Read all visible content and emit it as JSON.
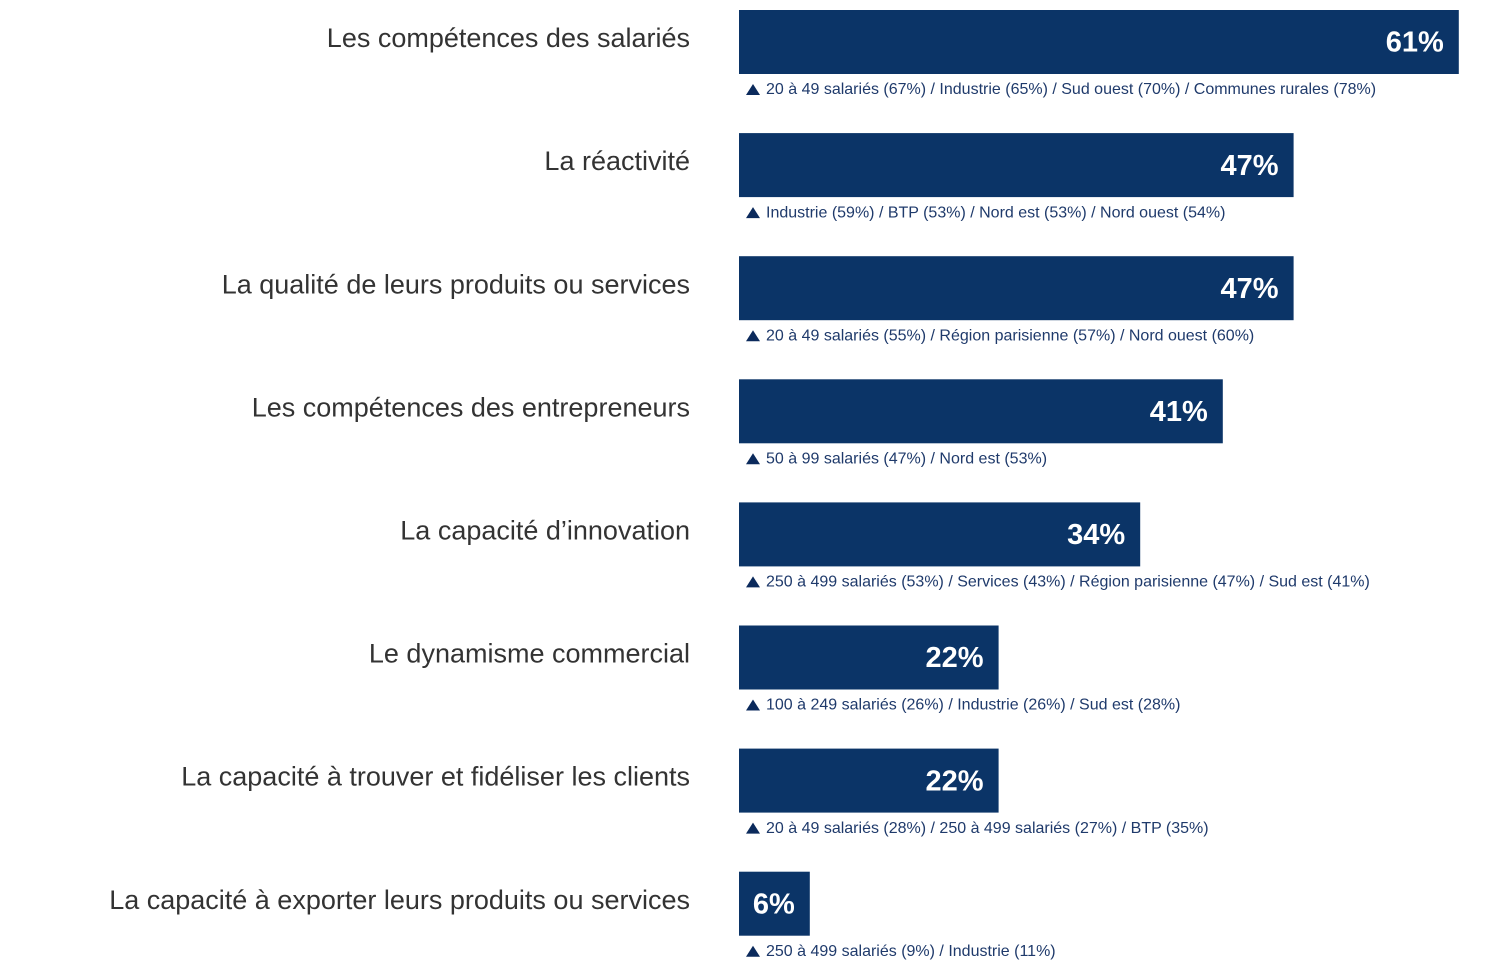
{
  "chart_data": {
    "type": "bar",
    "orientation": "horizontal",
    "color": "#0b3467",
    "categories": [
      "Les compétences des salariés",
      "La réactivité",
      "La qualité de leurs produits ou services",
      "Les compétences des entrepreneurs",
      "La capacité d’innovation",
      "Le dynamisme commercial",
      "La capacité à trouver et fidéliser les clients",
      "La capacité à exporter leurs produits ou services"
    ],
    "values": [
      61,
      47,
      47,
      41,
      34,
      22,
      22,
      6
    ],
    "value_labels": [
      "61%",
      "47%",
      "47%",
      "41%",
      "34%",
      "22%",
      "22%",
      "6%"
    ],
    "annotations": [
      "20 à 49 salariés (67%) / Industrie (65%) / Sud ouest (70%) / Communes rurales (78%)",
      "Industrie (59%) / BTP (53%) / Nord est (53%) / Nord ouest (54%)",
      "20 à 49 salariés (55%) / Région parisienne (57%) / Nord ouest (60%)",
      "50 à 99 salariés (47%) / Nord est (53%)",
      "250 à 499 salariés (53%) / Services (43%) / Région parisienne (47%) / Sud est (41%)",
      "100 à 249 salariés (26%) / Industrie (26%) / Sud est (28%)",
      "20 à 49 salariés (28%) / 250 à 499 salariés (27%) / BTP (35%)",
      "250 à 499 salariés (9%) / Industrie (11%)"
    ]
  }
}
